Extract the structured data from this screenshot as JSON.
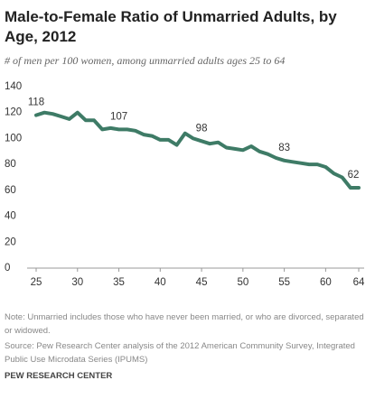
{
  "chart_data": {
    "type": "line",
    "title": "Male-to-Female Ratio of Unmarried Adults, by Age, 2012",
    "subtitle": "# of men per 100 women, among unmarried adults ages 25 to 64",
    "note": "Note: Unmarried includes those who have never been married, or who are divorced, separated or widowed.",
    "source": "Source: Pew Research Center analysis of the 2012 American Community Survey, Integrated Public Use Microdata Series (IPUMS)",
    "footer": "PEW RESEARCH CENTER",
    "x": [
      25,
      26,
      27,
      28,
      29,
      30,
      31,
      32,
      33,
      34,
      35,
      36,
      37,
      38,
      39,
      40,
      41,
      42,
      43,
      44,
      45,
      46,
      47,
      48,
      49,
      50,
      51,
      52,
      53,
      54,
      55,
      56,
      57,
      58,
      59,
      60,
      61,
      62,
      63,
      64
    ],
    "values": [
      118,
      120,
      119,
      117,
      115,
      120,
      114,
      114,
      107,
      108,
      107,
      107,
      106,
      103,
      102,
      99,
      99,
      95,
      104,
      100,
      98,
      96,
      97,
      93,
      92,
      91,
      94,
      90,
      88,
      85,
      83,
      82,
      81,
      80,
      80,
      78,
      73,
      70,
      62,
      62
    ],
    "value_labels": [
      "118",
      null,
      null,
      null,
      null,
      null,
      null,
      null,
      null,
      null,
      "107",
      null,
      null,
      null,
      null,
      null,
      null,
      null,
      null,
      null,
      "98",
      null,
      null,
      null,
      null,
      null,
      null,
      null,
      null,
      null,
      "83",
      null,
      null,
      null,
      null,
      null,
      null,
      null,
      null,
      "62"
    ],
    "color": "#3e7b66",
    "xlim": [
      25,
      64
    ],
    "xticks": [
      25,
      30,
      35,
      40,
      45,
      50,
      55,
      60,
      64
    ],
    "ylim": [
      0,
      140
    ],
    "yticks": [
      0,
      20,
      40,
      60,
      80,
      100,
      120,
      140
    ],
    "grid": false
  }
}
